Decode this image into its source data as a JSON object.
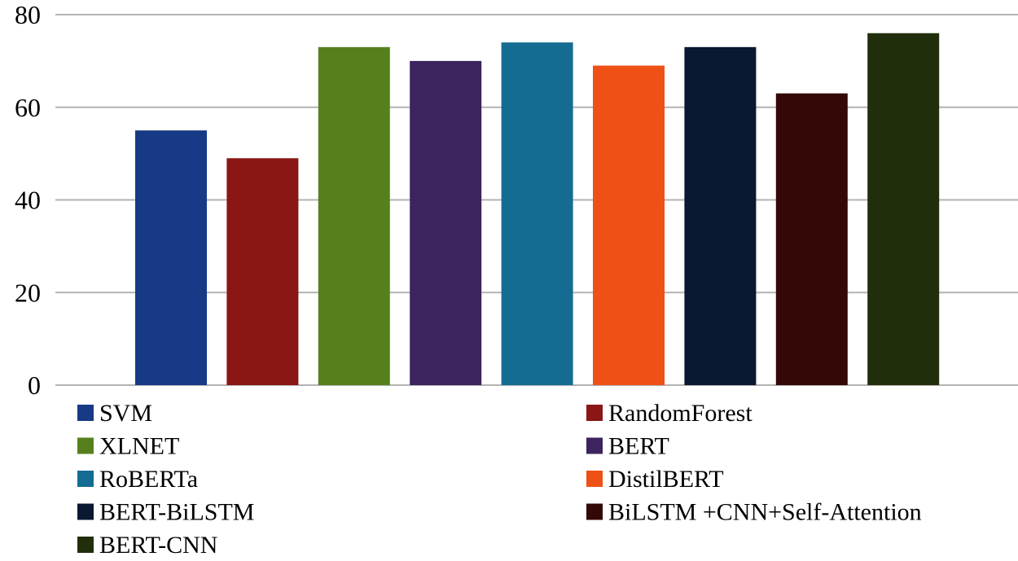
{
  "chart_data": {
    "type": "bar",
    "title": "",
    "xlabel": "",
    "ylabel": "",
    "ylim": [
      0,
      80
    ],
    "yticks": [
      0,
      20,
      40,
      60,
      80
    ],
    "grid": true,
    "legend_position": "bottom",
    "series": [
      {
        "name": "SVM",
        "value": 55,
        "color": "#173a86"
      },
      {
        "name": "RandomForest",
        "value": 49,
        "color": "#8a1616"
      },
      {
        "name": "XLNET",
        "value": 73,
        "color": "#56801e"
      },
      {
        "name": "BERT",
        "value": 70,
        "color": "#3c245e"
      },
      {
        "name": "RoBERTa",
        "value": 74,
        "color": "#156c92"
      },
      {
        "name": "DistilBERT",
        "value": 69,
        "color": "#ee5016"
      },
      {
        "name": "BERT-BiLSTM",
        "value": 73,
        "color": "#0a1831"
      },
      {
        "name": "BiLSTM +CNN+Self-Attention",
        "value": 63,
        "color": "#330807"
      },
      {
        "name": "BERT-CNN",
        "value": 76,
        "color": "#212e0b"
      }
    ]
  }
}
